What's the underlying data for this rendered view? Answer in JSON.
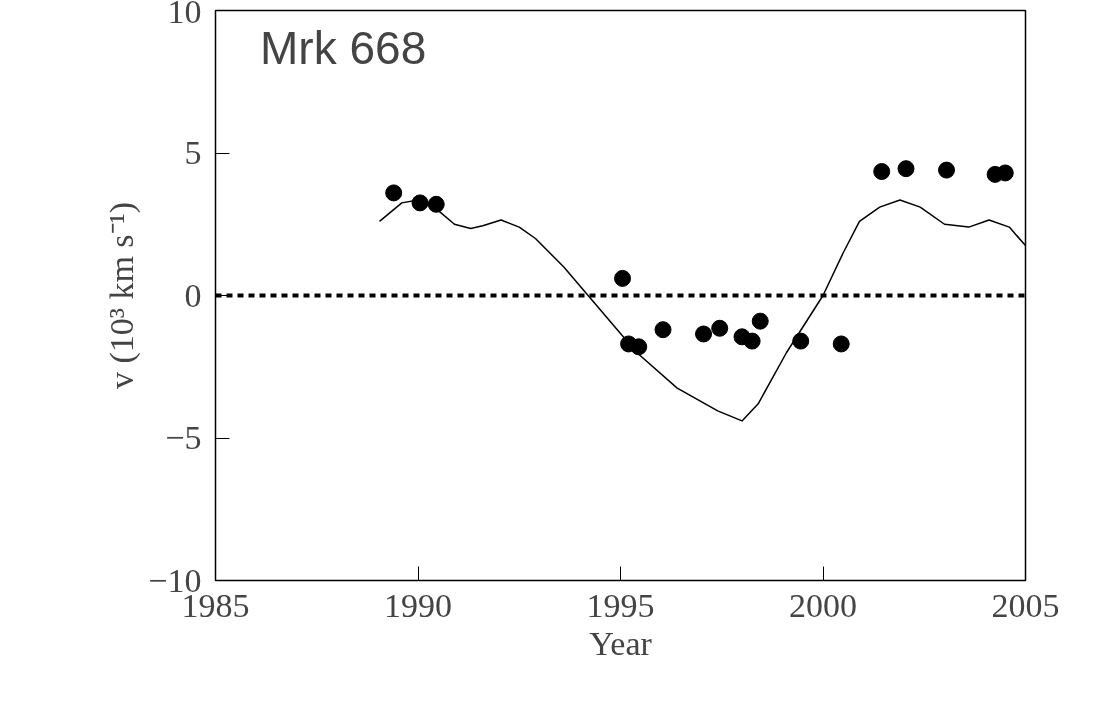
{
  "chart_data": {
    "type": "scatter",
    "xlabel": "Year",
    "ylabel": "v (10³ km s⁻¹)",
    "annotations": [
      "Mrk 668"
    ],
    "xlim": [
      1985,
      2005
    ],
    "xticks": [
      1985,
      1990,
      1995,
      2000,
      2005
    ],
    "ylim": [
      -10,
      10
    ],
    "yticks": [
      {
        "value": -10,
        "label": "−10"
      },
      {
        "value": -5,
        "label": "−5"
      },
      0,
      5,
      10
    ],
    "grid": false,
    "ref_lines": [
      {
        "axis": "y",
        "value": 0,
        "label": null,
        "color": "#000000",
        "line_style": "dashed"
      }
    ],
    "series": [
      {
        "color": "#000000",
        "marker": "circle",
        "x": [
          1989.4,
          1990.05,
          1990.45,
          1995.05,
          1995.2,
          1995.45,
          1996.05,
          1997.05,
          1997.45,
          1998.0,
          1998.25,
          1998.45,
          1999.45,
          2000.45,
          2001.45,
          2002.05,
          2003.05,
          2004.25,
          2004.5
        ],
        "values": [
          3.6,
          3.25,
          3.2,
          0.6,
          -1.7,
          -1.8,
          -1.2,
          -1.35,
          -1.15,
          -1.45,
          -1.6,
          -0.9,
          -1.6,
          -1.7,
          4.35,
          4.45,
          4.4,
          4.25,
          4.3
        ]
      },
      {
        "type": "line",
        "color": "#000000",
        "line_style": "solid",
        "x": [
          1989.05,
          1989.6,
          1990.0,
          1990.4,
          1990.9,
          1991.3,
          1991.6,
          1992.05,
          1992.5,
          1992.9,
          1993.6,
          1994.2,
          1994.8,
          1995.4,
          1996.4,
          1997.4,
          1998.0,
          1998.4,
          1999.1,
          2000.0,
          2000.5,
          2000.9,
          2001.4,
          2001.9,
          2002.4,
          2003.0,
          2003.6,
          2004.1,
          2004.6,
          2005.0
        ],
        "values": [
          2.6,
          3.25,
          3.35,
          3.1,
          2.5,
          2.35,
          2.45,
          2.65,
          2.4,
          2.0,
          1.0,
          0.0,
          -1.0,
          -2.0,
          -3.25,
          -4.05,
          -4.4,
          -3.8,
          -2.0,
          0.0,
          1.5,
          2.6,
          3.1,
          3.35,
          3.1,
          2.5,
          2.4,
          2.65,
          2.4,
          1.75
        ]
      }
    ]
  }
}
